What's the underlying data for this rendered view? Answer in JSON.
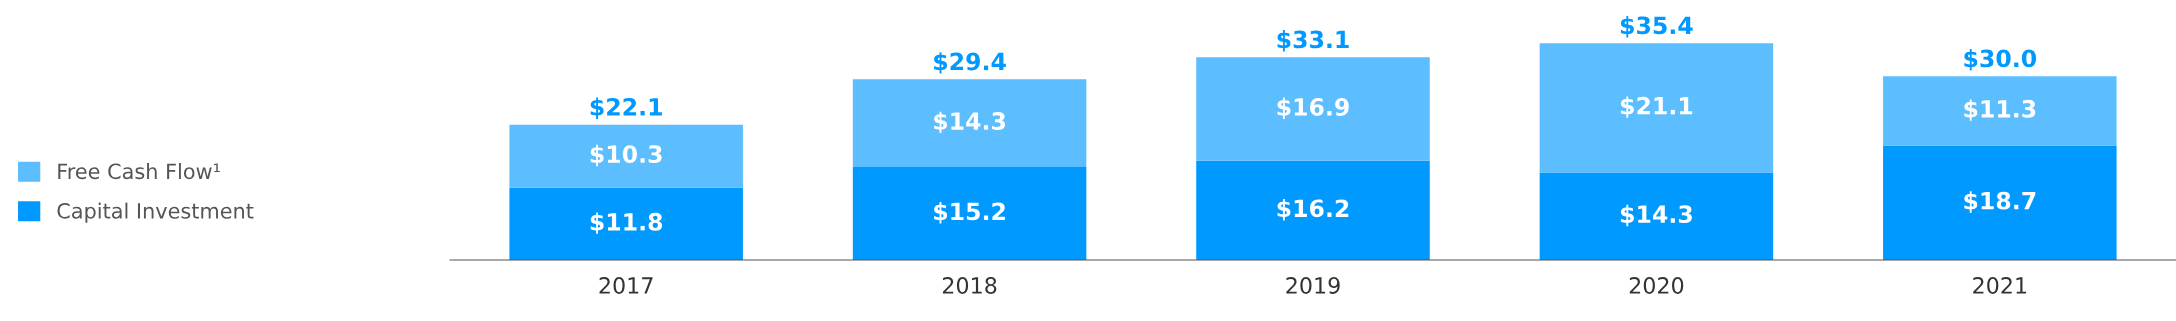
{
  "chart_data": {
    "type": "bar",
    "stacked": true,
    "categories": [
      "2017",
      "2018",
      "2019",
      "2020",
      "2021"
    ],
    "series": [
      {
        "name": "Capital Investment",
        "color": "#0099ff",
        "values": [
          11.8,
          15.2,
          16.2,
          14.3,
          18.7
        ],
        "value_labels": [
          "$11.8",
          "$15.2",
          "$16.2",
          "$14.3",
          "$18.7"
        ]
      },
      {
        "name": "Free Cash Flow¹",
        "color": "#5cbdff",
        "values": [
          10.3,
          14.3,
          16.9,
          21.1,
          11.3
        ],
        "value_labels": [
          "$10.3",
          "$14.3",
          "$16.9",
          "$21.1",
          "$11.3"
        ]
      }
    ],
    "totals": [
      "$22.1",
      "$29.4",
      "$33.1",
      "$35.4",
      "$30.0"
    ],
    "legend": "left",
    "grid": false
  }
}
